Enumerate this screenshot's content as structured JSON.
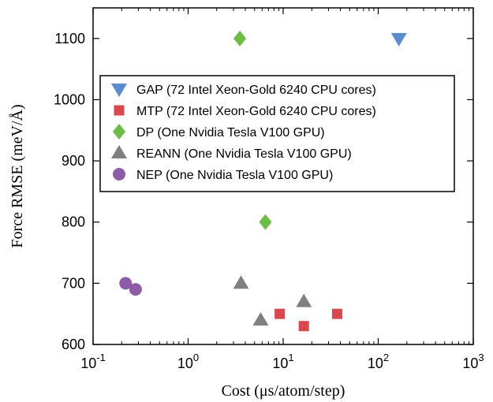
{
  "chart_data": {
    "type": "scatter",
    "xlabel": "Cost (μs/atom/step)",
    "ylabel": "Force RMSE (meV/Å)",
    "xscale": "log",
    "xlim": [
      0.1,
      1000
    ],
    "ylim": [
      600,
      1150
    ],
    "x_ticks": [
      {
        "value": 0.1,
        "base": "10",
        "exp": "-1"
      },
      {
        "value": 1,
        "base": "10",
        "exp": "0"
      },
      {
        "value": 10,
        "base": "10",
        "exp": "1"
      },
      {
        "value": 100,
        "base": "10",
        "exp": "2"
      },
      {
        "value": 1000,
        "base": "10",
        "exp": "3"
      }
    ],
    "y_ticks": [
      {
        "value": 600,
        "label": "600"
      },
      {
        "value": 700,
        "label": "700"
      },
      {
        "value": 800,
        "label": "800"
      },
      {
        "value": 900,
        "label": "900"
      },
      {
        "value": 1000,
        "label": "1000"
      },
      {
        "value": 1100,
        "label": "1100"
      }
    ],
    "grid": false,
    "legend_position": "upper-middle",
    "series": [
      {
        "name": "GAP (72 Intel Xeon-Gold 6240 CPU cores)",
        "marker": "triangle-down",
        "color": "#5b8bd0",
        "points": [
          {
            "x": 165,
            "y": 1100
          }
        ]
      },
      {
        "name": "MTP (72 Intel Xeon-Gold 6240 CPU cores)",
        "marker": "square",
        "color": "#d9474f",
        "points": [
          {
            "x": 9.2,
            "y": 650
          },
          {
            "x": 16.5,
            "y": 630
          },
          {
            "x": 37,
            "y": 650
          }
        ]
      },
      {
        "name": "DP (One Nvidia Tesla V100 GPU)",
        "marker": "diamond",
        "color": "#6cbd45",
        "points": [
          {
            "x": 3.5,
            "y": 1100
          },
          {
            "x": 6.5,
            "y": 800
          }
        ]
      },
      {
        "name": "REANN (One Nvidia Tesla V100 GPU)",
        "marker": "triangle-up",
        "color": "#808080",
        "points": [
          {
            "x": 3.6,
            "y": 700
          },
          {
            "x": 5.8,
            "y": 640
          },
          {
            "x": 16.5,
            "y": 670
          }
        ]
      },
      {
        "name": "NEP (One Nvidia Tesla V100 GPU)",
        "marker": "circle",
        "color": "#8e5ba6",
        "points": [
          {
            "x": 0.22,
            "y": 700
          },
          {
            "x": 0.28,
            "y": 690
          }
        ]
      }
    ]
  }
}
